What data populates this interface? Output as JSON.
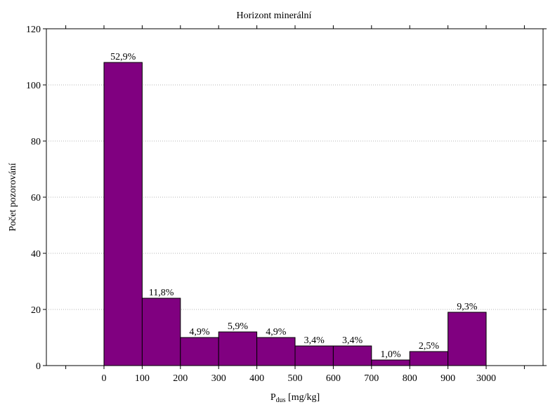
{
  "chart_data": {
    "type": "bar",
    "title": "Horizont minerální",
    "xlabel_main": "P",
    "xlabel_sub": "dus",
    "xlabel_unit": " [mg/kg]",
    "ylabel": "Počet pozorování",
    "ylim": [
      0,
      120
    ],
    "yticks": [
      0,
      20,
      40,
      60,
      80,
      100,
      120
    ],
    "xtick_labels": [
      "0",
      "100",
      "200",
      "300",
      "400",
      "500",
      "600",
      "700",
      "800",
      "900",
      "3000"
    ],
    "values": [
      108,
      24,
      10,
      12,
      10,
      7,
      7,
      2,
      5,
      19
    ],
    "labels": [
      "52,9%",
      "11,8%",
      "4,9%",
      "5,9%",
      "4,9%",
      "3,4%",
      "3,4%",
      "1,0%",
      "2,5%",
      "9,3%"
    ],
    "bar_color": "#800080",
    "grid": true
  }
}
